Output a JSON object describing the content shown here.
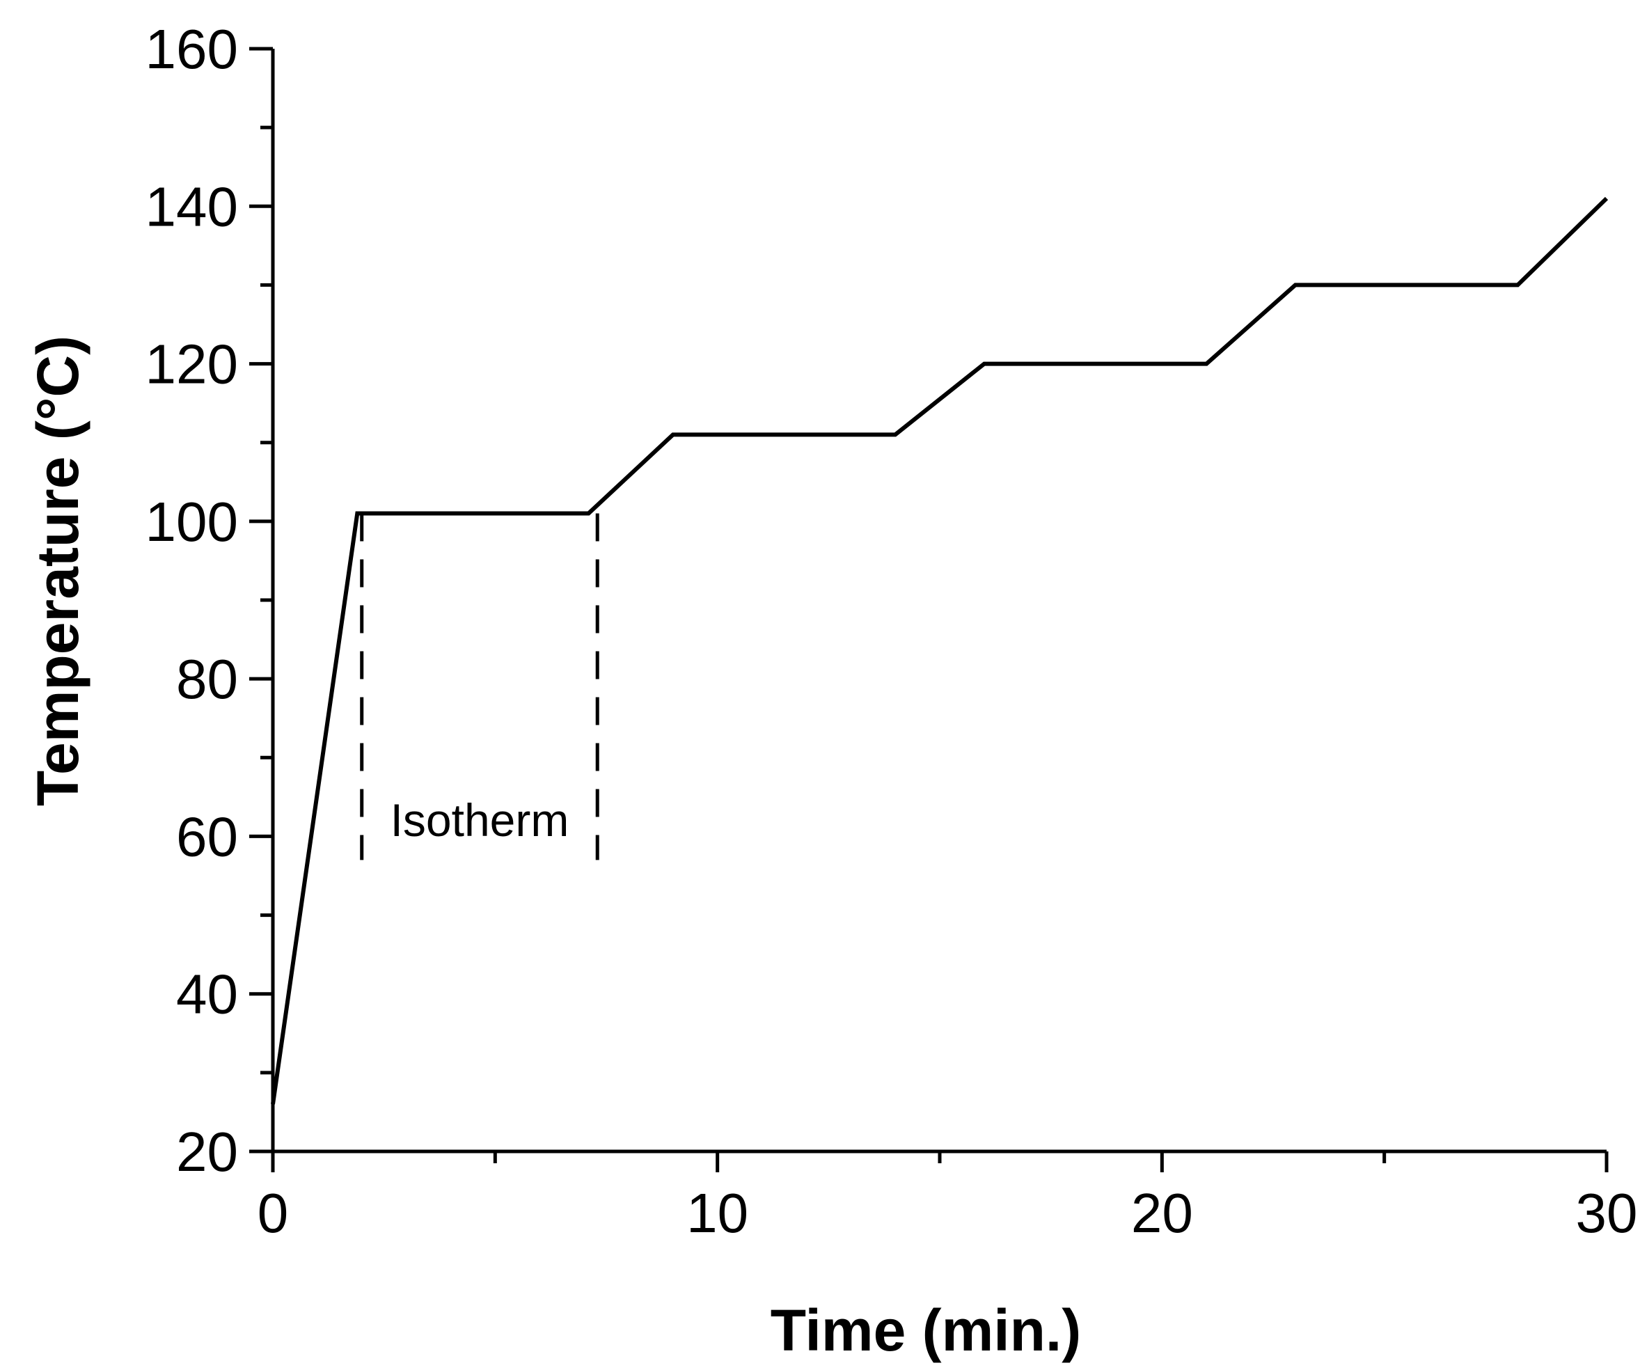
{
  "chart_data": {
    "type": "line",
    "title": "",
    "xlabel": "Time (min.)",
    "ylabel": "Temperature (°C)",
    "xlim": [
      0,
      30
    ],
    "ylim": [
      20,
      160
    ],
    "x_ticks": [
      0,
      10,
      20,
      30
    ],
    "x_minor_ticks": [
      5,
      15,
      25
    ],
    "y_ticks": [
      20,
      40,
      60,
      80,
      100,
      120,
      140,
      160
    ],
    "y_minor_ticks": [
      30,
      50,
      70,
      90,
      110,
      130,
      150
    ],
    "grid": false,
    "legend": "none",
    "line_color": "#000000",
    "series": [
      {
        "x": [
          0,
          1.9,
          7.1,
          9.0,
          14.0,
          16.0,
          21.0,
          23.0,
          28.0,
          30.0
        ],
        "y": [
          26,
          101,
          101,
          111,
          111,
          120,
          120,
          130,
          130,
          141
        ]
      }
    ],
    "annotations": [
      {
        "text": "Isotherm",
        "x_start": 2.0,
        "x_end": 7.3,
        "y_low": 57,
        "y_high": 101,
        "style": "dashed-bracket"
      }
    ]
  }
}
